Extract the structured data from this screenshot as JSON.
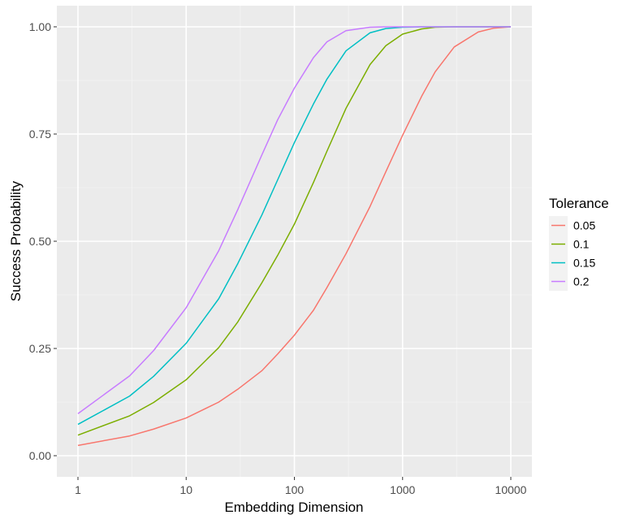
{
  "chart_data": {
    "type": "line",
    "xlabel": "Embedding Dimension",
    "ylabel": "Success Probability",
    "x_scale": "log10",
    "xlim": [
      1,
      10000
    ],
    "ylim": [
      0,
      1
    ],
    "x_ticks": [
      1,
      10,
      100,
      1000,
      10000
    ],
    "x_tick_labels": [
      "1",
      "10",
      "100",
      "1000",
      "10000"
    ],
    "y_ticks": [
      0,
      0.25,
      0.5,
      0.75,
      1
    ],
    "y_tick_labels": [
      "0.00",
      "0.25",
      "0.50",
      "0.75",
      "1.00"
    ],
    "grid": true,
    "legend": {
      "title": "Tolerance",
      "position": "right"
    },
    "x": [
      1,
      3,
      5,
      10,
      20,
      30,
      50,
      70,
      100,
      150,
      200,
      300,
      500,
      700,
      1000,
      1500,
      2000,
      3000,
      5000,
      7000,
      10000
    ],
    "series": [
      {
        "name": "0.05",
        "color": "#F8766D",
        "values": [
          0.024,
          0.046,
          0.062,
          0.088,
          0.125,
          0.155,
          0.198,
          0.237,
          0.281,
          0.339,
          0.392,
          0.471,
          0.581,
          0.662,
          0.747,
          0.838,
          0.895,
          0.953,
          0.988,
          0.997,
          1.0
        ]
      },
      {
        "name": "0.1",
        "color": "#7CAE00",
        "values": [
          0.048,
          0.093,
          0.124,
          0.177,
          0.252,
          0.312,
          0.403,
          0.467,
          0.54,
          0.637,
          0.71,
          0.81,
          0.912,
          0.956,
          0.983,
          0.995,
          0.999,
          1.0,
          1.0,
          1.0,
          1.0
        ]
      },
      {
        "name": "0.15",
        "color": "#00BFC4",
        "values": [
          0.073,
          0.139,
          0.185,
          0.262,
          0.366,
          0.448,
          0.561,
          0.643,
          0.73,
          0.82,
          0.878,
          0.944,
          0.986,
          0.996,
          0.999,
          1.0,
          1.0,
          1.0,
          1.0,
          1.0,
          1.0
        ]
      },
      {
        "name": "0.2",
        "color": "#C77CFF",
        "values": [
          0.098,
          0.186,
          0.245,
          0.345,
          0.478,
          0.574,
          0.701,
          0.783,
          0.857,
          0.928,
          0.965,
          0.991,
          0.999,
          1.0,
          1.0,
          1.0,
          1.0,
          1.0,
          1.0,
          1.0,
          1.0
        ]
      }
    ]
  }
}
